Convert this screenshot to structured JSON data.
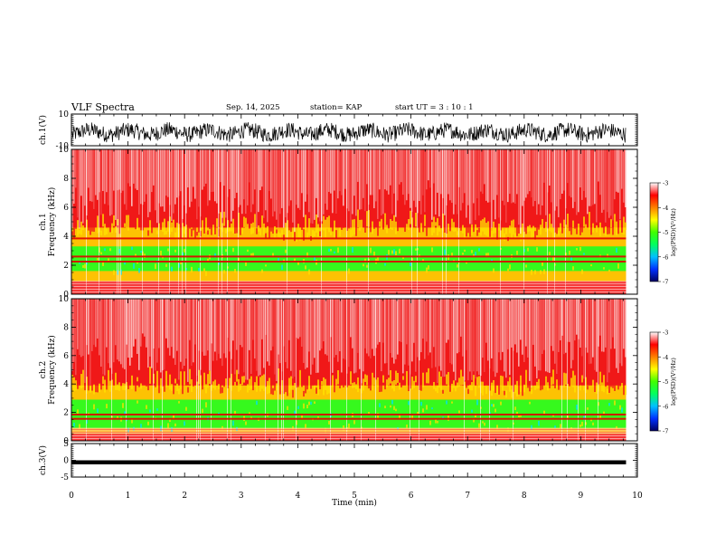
{
  "header": {
    "title": "VLF Spectra",
    "date": "Sep. 14, 2025",
    "station": "station= KAP",
    "start": "start  UT =   3 : 10 : 1"
  },
  "chart_data": {
    "type": "heatmap",
    "title": "VLF Spectra",
    "x": {
      "label": "Time  (min)",
      "range": [
        0,
        10
      ],
      "ticks": [
        "0",
        "1",
        "2",
        "3",
        "4",
        "5",
        "6",
        "7",
        "8",
        "9",
        "10"
      ],
      "data_end": 9.8
    },
    "panels": [
      {
        "id": "ch1-waveform",
        "type": "line",
        "ylabel": "ch.1(V)",
        "ylim": [
          -10,
          10
        ],
        "ytick_labels": [
          "10",
          "-10"
        ],
        "trace_color": "#000000",
        "trace_mean": -1.5,
        "trace_spread": 5
      },
      {
        "id": "ch1-spectrogram",
        "type": "heatmap",
        "ylabel_channel": "ch.1",
        "ylabel": "Frequency (kHz)",
        "ylim": [
          0,
          10
        ],
        "ytick_labels": [
          "0",
          "2",
          "4",
          "6",
          "8",
          "10"
        ],
        "band_start_khz": [
          4.2,
          4.6,
          4.1,
          4.4,
          4.0,
          4.3,
          4.5,
          4.2,
          4.0,
          4.4,
          4.3
        ],
        "low_green_band_khz": [
          1.6,
          3.3
        ],
        "low_yellow_band_khz": [
          0.9,
          4.6
        ],
        "strong_lines_khz": [
          3.85,
          2.6,
          2.25
        ]
      },
      {
        "id": "ch2-spectrogram",
        "type": "heatmap",
        "ylabel_channel": "ch.2",
        "ylabel": "Frequency (kHz)",
        "ylim": [
          0,
          10
        ],
        "ytick_labels": [
          "0",
          "2",
          "4",
          "6",
          "8",
          "10"
        ],
        "band_start_khz": [
          3.5,
          3.9,
          3.6,
          3.8,
          3.4,
          3.7,
          3.9,
          3.6,
          3.4,
          3.8,
          3.6
        ],
        "low_green_band_khz": [
          0.9,
          2.9
        ],
        "low_yellow_band_khz": [
          0.5,
          3.9
        ],
        "strong_lines_khz": [
          1.85,
          1.55
        ]
      },
      {
        "id": "ch3-waveform",
        "type": "line",
        "ylabel": "ch.3(V)",
        "ylim": [
          -5,
          5
        ],
        "ytick_labels": [
          "5",
          "0",
          "-5"
        ],
        "trace_color": "#000000",
        "trace_level": -0.6,
        "trace_thickness": 0.6
      }
    ],
    "colorbars": [
      {
        "panel": "ch1-spectrogram",
        "label": "log(PSD)(V²/Hz)",
        "range": [
          -7,
          -3
        ],
        "tick_labels": [
          "-3",
          "-4",
          "-5",
          "-6",
          "-7"
        ]
      },
      {
        "panel": "ch2-spectrogram",
        "label": "log(PSD)(V²/Hz)",
        "range": [
          -7,
          -3
        ],
        "tick_labels": [
          "-3",
          "-4",
          "-5",
          "-6",
          "-7"
        ]
      }
    ],
    "colormap": [
      "#000060",
      "#0030ff",
      "#00c0ff",
      "#00ff60",
      "#40ff00",
      "#ffff00",
      "#ff8000",
      "#ff0000",
      "#ffffff"
    ],
    "colors": {
      "background_red": "#f01818",
      "white_noise": "#ffffff",
      "yellow": "#ffe000",
      "green": "#20ff20",
      "cyan": "#00e0ff"
    }
  }
}
